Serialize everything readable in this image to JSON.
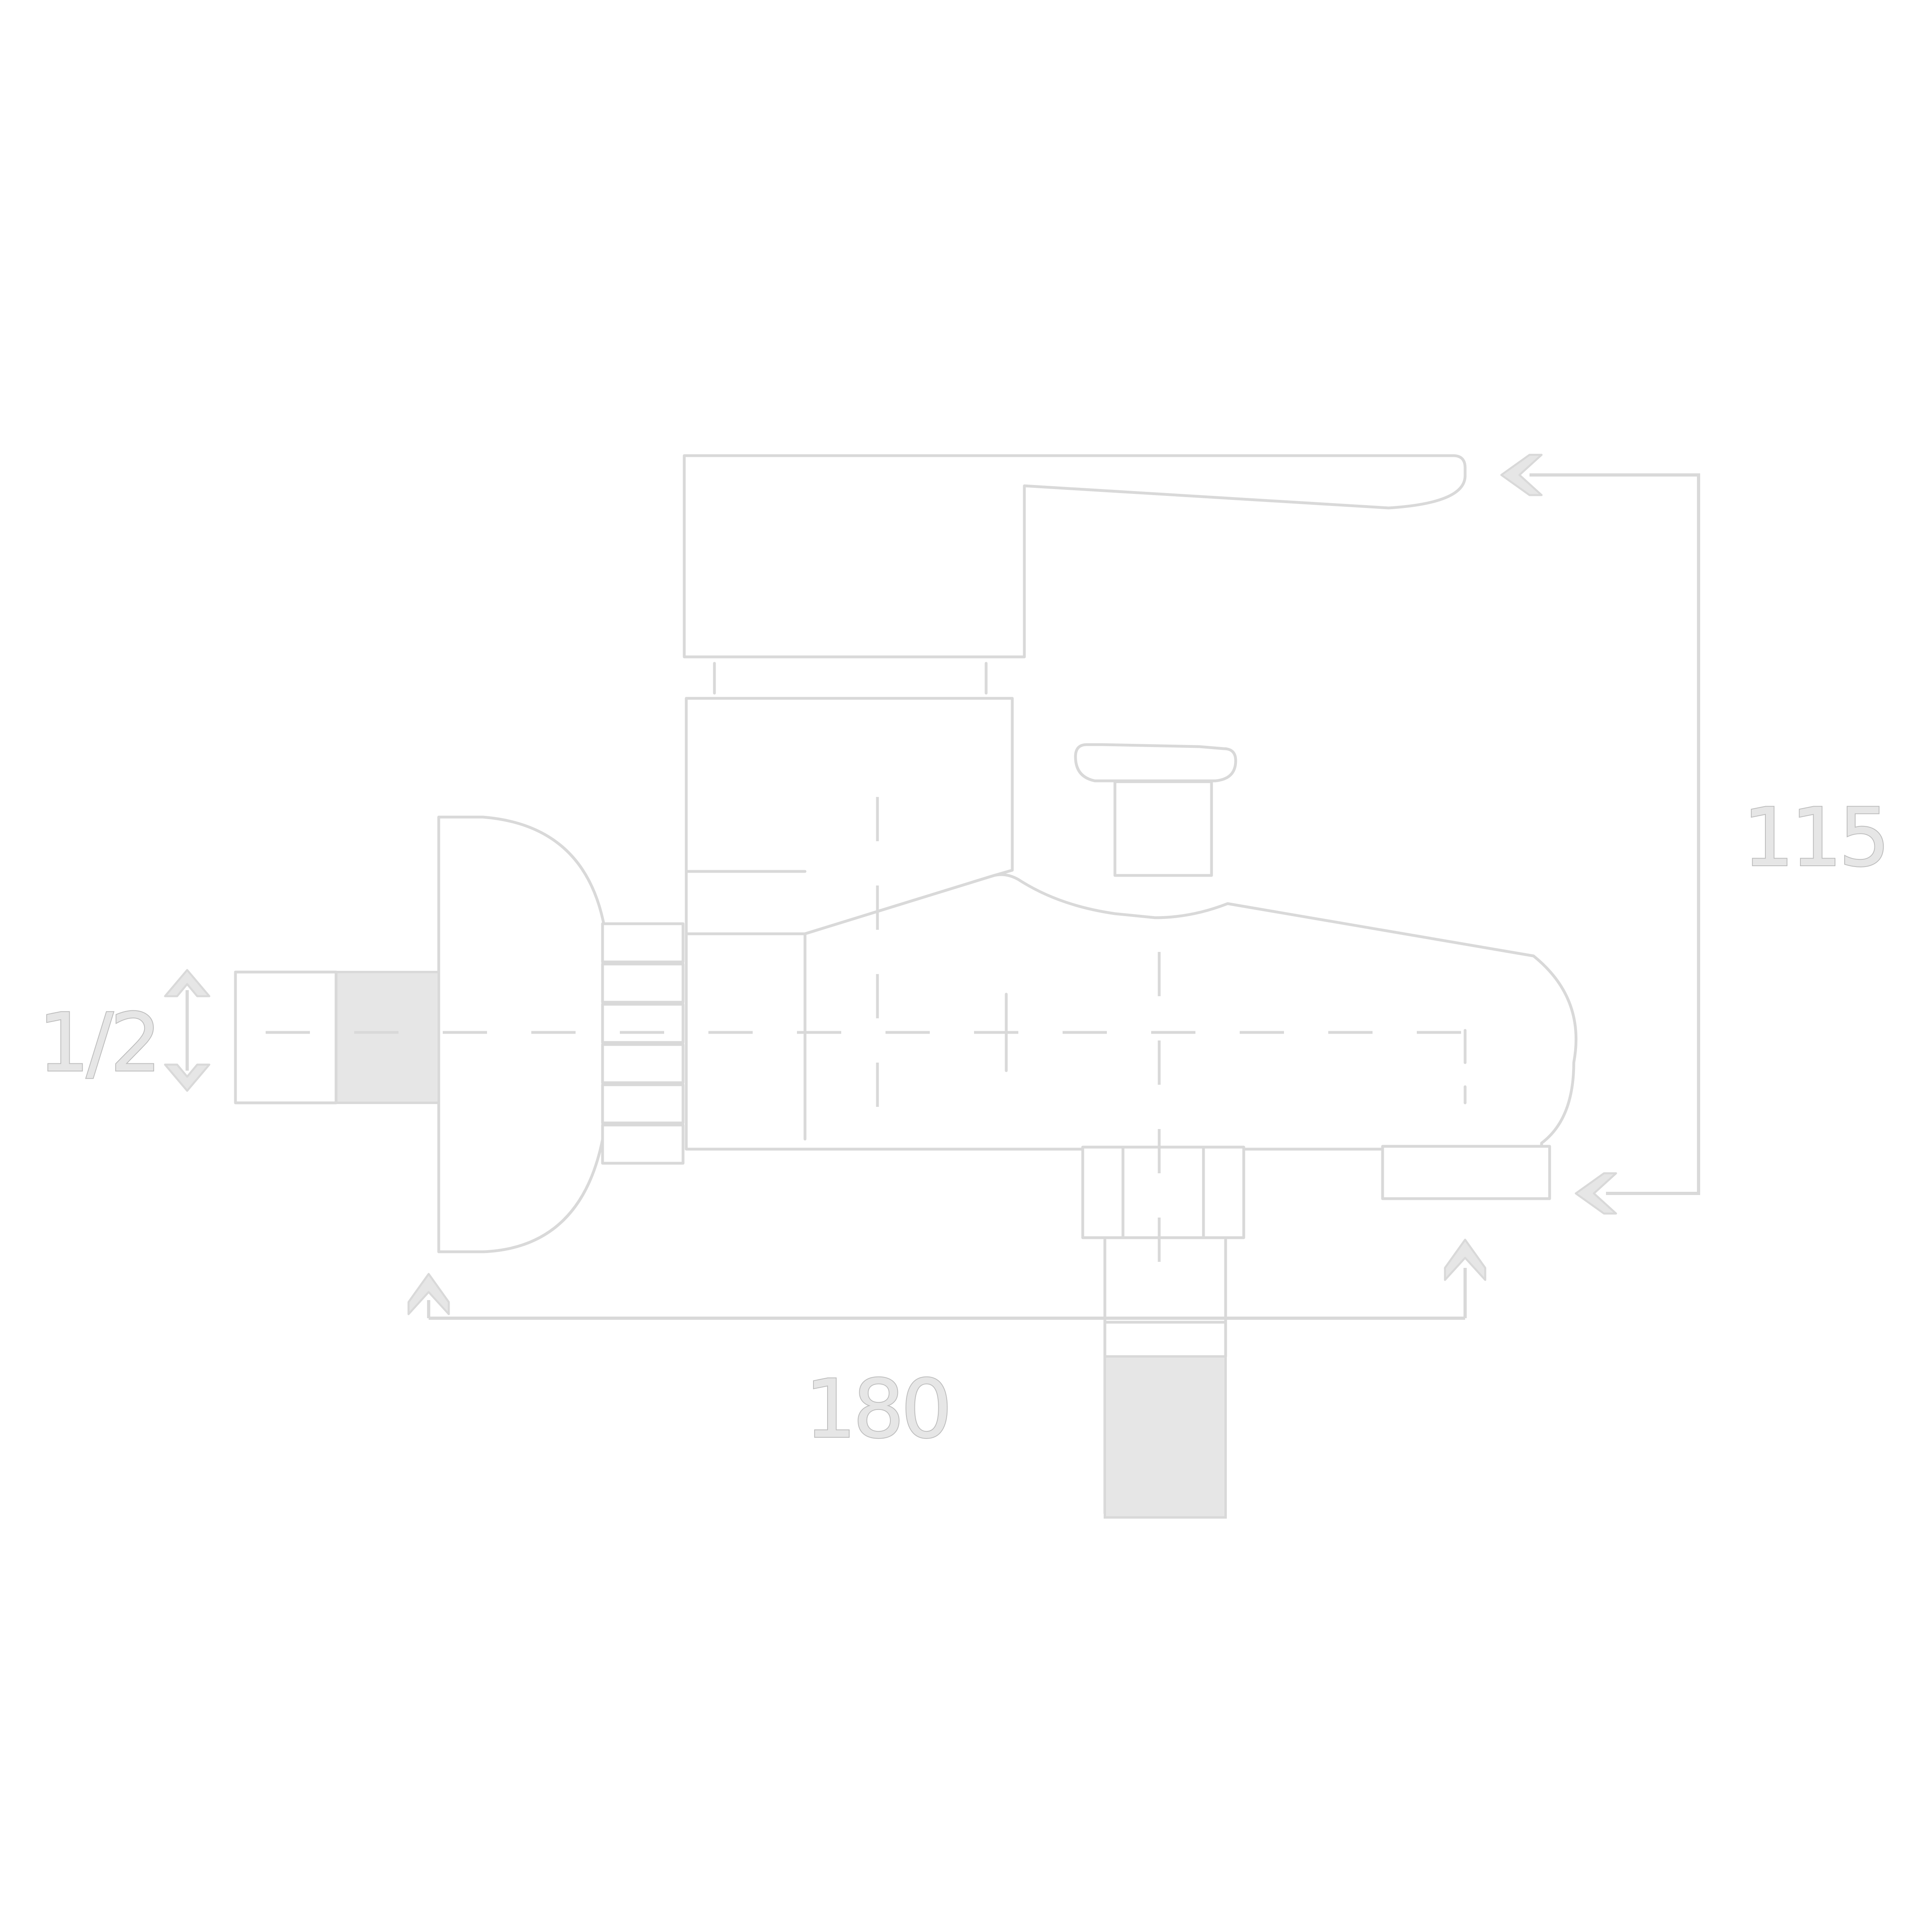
{
  "dimensions": {
    "thread": "1/2",
    "height": "115",
    "length": "180"
  },
  "colors": {
    "line": "#d9d9d9",
    "fill": "#e6e6e6",
    "background": "#ffffff"
  }
}
